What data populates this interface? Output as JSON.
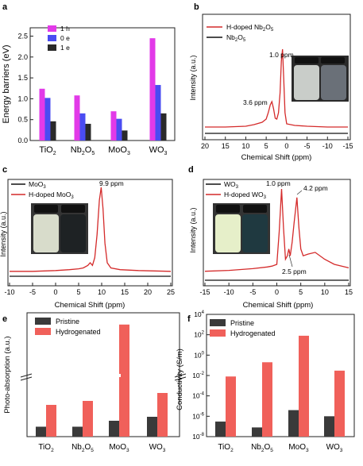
{
  "panels": {
    "a": {
      "letter": "a",
      "ylabel": "Energy barriers (eV)",
      "legend": [
        "1 h",
        "0 e",
        "1 e"
      ],
      "colors": [
        "#e23ae8",
        "#4a4cf2",
        "#2a2a2a"
      ],
      "yticks": [
        "0.0",
        "0.5",
        "1.0",
        "1.5",
        "2.0",
        "2.5"
      ],
      "xlabels": [
        "TiO2",
        "Nb2O5",
        "MoO3",
        "WO3"
      ]
    },
    "b": {
      "letter": "b",
      "legend": [
        "H-doped Nb2O5",
        "Nb2O5"
      ],
      "xlabel": "Chemical Shift (ppm)",
      "ylabel": "Intensity (a.u.)",
      "xticks": [
        "20",
        "15",
        "10",
        "5",
        "0",
        "-5",
        "-10",
        "-15"
      ],
      "peak_labels": [
        "1.0 ppm",
        "3.6 ppm"
      ]
    },
    "c": {
      "letter": "c",
      "legend": [
        "MoO3",
        "H-doped MoO3"
      ],
      "xlabel": "Chemical Shift (ppm)",
      "ylabel": "Intensity (a.u.)",
      "xticks": [
        "-10",
        "-5",
        "0",
        "5",
        "10",
        "15",
        "20",
        "25"
      ],
      "peak_labels": [
        "9.9 ppm"
      ]
    },
    "d": {
      "letter": "d",
      "legend": [
        "WO3",
        "H-doped WO3"
      ],
      "xlabel": "Chemical Shift (ppm)",
      "ylabel": "Intensity (a.u.)",
      "xticks": [
        "-15",
        "-10",
        "-5",
        "0",
        "5",
        "10",
        "15"
      ],
      "peak_labels": [
        "1.0 ppm",
        "4.2 ppm",
        "2.5 ppm"
      ]
    },
    "e": {
      "letter": "e",
      "ylabel": "Photo-absorption (a.u.)",
      "legend": [
        "Pristine",
        "Hydrogenated"
      ],
      "colors": [
        "#3a3a3a",
        "#f0605a"
      ],
      "xlabels": [
        "TiO2",
        "Nb2O5",
        "MoO3",
        "WO3"
      ]
    },
    "f": {
      "letter": "f",
      "ylabel": "Conductivity (S/m)",
      "legend": [
        "Pristine",
        "Hydrogenated"
      ],
      "colors": [
        "#3a3a3a",
        "#f0605a"
      ],
      "ytick_exponents": [
        "4",
        "2",
        "0",
        "-2",
        "-4",
        "-6",
        "-8"
      ],
      "xlabels": [
        "TiO2",
        "Nb2O5",
        "MoO3",
        "WO3"
      ]
    }
  },
  "chart_data": [
    {
      "type": "bar",
      "categories": [
        "TiO2",
        "Nb2O5",
        "MoO3",
        "WO3"
      ],
      "series": [
        {
          "name": "1 h",
          "values": [
            1.24,
            1.08,
            0.7,
            2.45
          ]
        },
        {
          "name": "0 e",
          "values": [
            1.02,
            0.65,
            0.52,
            1.33
          ]
        },
        {
          "name": "1 e",
          "values": [
            0.46,
            0.4,
            0.24,
            0.65
          ]
        }
      ],
      "xlabel": "",
      "ylabel": "Energy barriers (eV)",
      "ylim": [
        0,
        2.7
      ]
    },
    {
      "type": "line",
      "series": [
        {
          "name": "H-doped Nb2O5",
          "color": "#d42a2a",
          "x": [
            20,
            15,
            10,
            8,
            6,
            5,
            4.5,
            4,
            3.6,
            3.2,
            2.8,
            2.4,
            2,
            1.6,
            1.3,
            1.0,
            0.7,
            0.4,
            0,
            -2,
            -5,
            -10,
            -15
          ],
          "y": [
            0.02,
            0.02,
            0.03,
            0.05,
            0.08,
            0.12,
            0.2,
            0.3,
            0.34,
            0.25,
            0.13,
            0.12,
            0.2,
            0.45,
            0.85,
            1.0,
            0.6,
            0.2,
            0.06,
            0.04,
            0.03,
            0.02,
            0.02
          ]
        },
        {
          "name": "Nb2O5",
          "color": "#111111",
          "x": [
            20,
            -15
          ],
          "y": [
            0,
            0
          ]
        }
      ],
      "xlabel": "Chemical Shift (ppm)",
      "ylabel": "Intensity (a.u.)",
      "xlim": [
        20,
        -15
      ]
    },
    {
      "type": "line",
      "series": [
        {
          "name": "MoO3",
          "color": "#111111",
          "x": [
            -10,
            25
          ],
          "y": [
            0,
            0
          ]
        },
        {
          "name": "H-doped MoO3",
          "color": "#d42a2a",
          "x": [
            -10,
            -5,
            0,
            3,
            5,
            6,
            7,
            7.5,
            8,
            8.5,
            9,
            9.5,
            9.9,
            10.3,
            10.7,
            11.2,
            12,
            14,
            18,
            25
          ],
          "y": [
            0.02,
            0.02,
            0.03,
            0.04,
            0.05,
            0.06,
            0.09,
            0.12,
            0.09,
            0.18,
            0.45,
            0.85,
            1.0,
            0.75,
            0.35,
            0.12,
            0.06,
            0.04,
            0.03,
            0.02
          ]
        }
      ],
      "xlabel": "Chemical Shift (ppm)",
      "ylabel": "Intensity (a.u.)",
      "xlim": [
        -10,
        25
      ]
    },
    {
      "type": "line",
      "series": [
        {
          "name": "WO3",
          "color": "#111111",
          "x": [
            -15,
            15
          ],
          "y": [
            0,
            0
          ]
        },
        {
          "name": "H-doped WO3",
          "color": "#d42a2a",
          "x": [
            -15,
            -10,
            -5,
            -2,
            -1,
            0,
            0.5,
            1.0,
            1.4,
            1.8,
            2.2,
            2.5,
            2.8,
            3.2,
            3.6,
            4.2,
            4.6,
            5,
            5.5,
            6.5,
            8,
            10,
            12,
            15
          ],
          "y": [
            0.04,
            0.05,
            0.07,
            0.09,
            0.1,
            0.12,
            0.5,
            1.0,
            0.55,
            0.18,
            0.22,
            0.3,
            0.22,
            0.38,
            0.6,
            0.9,
            0.55,
            0.3,
            0.22,
            0.24,
            0.26,
            0.18,
            0.12,
            0.08
          ]
        }
      ],
      "xlabel": "Chemical Shift (ppm)",
      "ylabel": "Intensity (a.u.)",
      "xlim": [
        -15,
        15
      ]
    },
    {
      "type": "bar",
      "categories": [
        "TiO2",
        "Nb2O5",
        "MoO3",
        "WO3"
      ],
      "series": [
        {
          "name": "Pristine",
          "values": [
            0.05,
            0.05,
            0.08,
            0.1
          ]
        },
        {
          "name": "Hydrogenated",
          "values": [
            0.16,
            0.18,
            1.05,
            0.22
          ]
        }
      ],
      "xlabel": "",
      "ylabel": "Photo-absorption (a.u.)",
      "y_axis": "broken"
    },
    {
      "type": "bar",
      "categories": [
        "TiO2",
        "Nb2O5",
        "MoO3",
        "WO3"
      ],
      "series": [
        {
          "name": "Pristine",
          "values": [
            3e-07,
            8e-08,
            4e-06,
            1e-06
          ]
        },
        {
          "name": "Hydrogenated",
          "values": [
            0.008,
            0.2,
            80,
            0.03
          ]
        }
      ],
      "xlabel": "",
      "ylabel": "Conductivity (S/m)",
      "yscale": "log",
      "ylim": [
        1e-08,
        10000
      ]
    }
  ]
}
